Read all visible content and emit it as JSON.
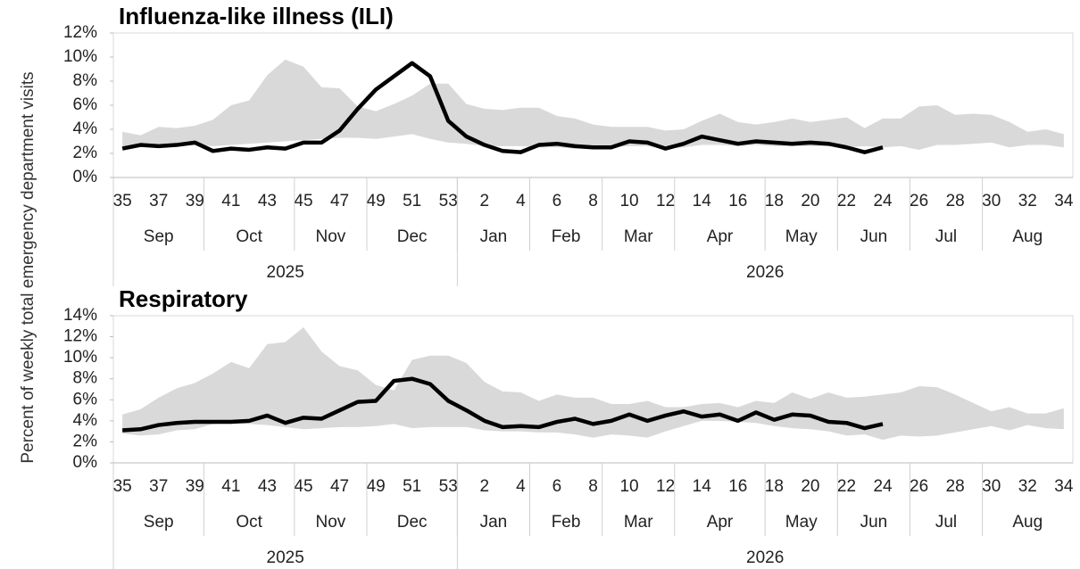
{
  "ylabel": "Percent of weekly total emergency department visits",
  "chart_data": [
    {
      "type": "line",
      "title": "Influenza-like illness (ILI)",
      "categories": [
        35,
        null,
        37,
        null,
        39,
        null,
        41,
        null,
        43,
        null,
        45,
        null,
        47,
        null,
        49,
        null,
        51,
        null,
        53,
        null,
        2,
        null,
        4,
        null,
        6,
        null,
        8,
        null,
        10,
        null,
        12,
        null,
        14,
        null,
        16,
        null,
        18,
        null,
        20,
        null,
        22,
        null,
        24,
        null,
        26,
        null,
        28,
        null,
        30,
        null,
        32,
        null,
        34
      ],
      "months": [
        {
          "label": "Sep",
          "weeks": 5
        },
        {
          "label": "Oct",
          "weeks": 5
        },
        {
          "label": "Nov",
          "weeks": 4
        },
        {
          "label": "Dec",
          "weeks": 5
        },
        {
          "label": "Jan",
          "weeks": 4
        },
        {
          "label": "Feb",
          "weeks": 4
        },
        {
          "label": "Mar",
          "weeks": 4
        },
        {
          "label": "Apr",
          "weeks": 5
        },
        {
          "label": "May",
          "weeks": 4
        },
        {
          "label": "Jun",
          "weeks": 4
        },
        {
          "label": "Jul",
          "weeks": 4
        },
        {
          "label": "Aug",
          "weeks": 5
        }
      ],
      "years": [
        {
          "label": "2025",
          "weeks": 19
        },
        {
          "label": "2026",
          "weeks": 34
        }
      ],
      "series": [
        {
          "color": "#000000",
          "values": [
            2.4,
            2.7,
            2.6,
            2.7,
            2.9,
            2.2,
            2.4,
            2.3,
            2.5,
            2.4,
            2.9,
            2.9,
            3.9,
            5.7,
            7.3,
            8.4,
            9.5,
            8.4,
            4.7,
            3.4,
            2.7,
            2.2,
            2.1,
            2.7,
            2.8,
            2.6,
            2.5,
            2.5,
            3.0,
            2.9,
            2.4,
            2.8,
            3.4,
            3.1,
            2.8,
            3.0,
            2.9,
            2.8,
            2.9,
            2.8,
            2.5,
            2.1,
            2.5,
            null,
            null,
            null,
            null,
            null,
            null,
            null,
            null,
            null,
            null
          ]
        }
      ],
      "range": {
        "color": "#d9d9d9",
        "high": [
          3.8,
          3.5,
          4.2,
          4.1,
          4.3,
          4.8,
          6.0,
          6.4,
          8.5,
          9.8,
          9.2,
          7.5,
          7.4,
          5.9,
          5.5,
          6.1,
          6.8,
          7.8,
          7.8,
          6.1,
          5.7,
          5.6,
          5.8,
          5.8,
          5.1,
          4.9,
          4.4,
          4.2,
          4.2,
          4.2,
          3.9,
          4.0,
          4.7,
          5.3,
          4.6,
          4.4,
          4.6,
          4.9,
          4.6,
          4.8,
          5.0,
          4.1,
          4.9,
          4.9,
          5.9,
          6.0,
          5.2,
          5.3,
          5.2,
          4.6,
          3.8,
          4.0,
          3.6
        ],
        "low": [
          2.4,
          2.6,
          2.5,
          2.6,
          2.7,
          2.6,
          2.7,
          2.8,
          2.9,
          3.0,
          3.1,
          3.2,
          3.3,
          3.3,
          3.2,
          3.4,
          3.6,
          3.2,
          2.9,
          2.8,
          2.6,
          2.6,
          2.6,
          2.5,
          2.5,
          2.4,
          2.5,
          2.5,
          2.6,
          2.6,
          2.4,
          2.5,
          2.7,
          2.7,
          2.6,
          2.7,
          2.6,
          2.6,
          2.6,
          2.6,
          2.5,
          2.6,
          2.5,
          2.6,
          2.3,
          2.7,
          2.7,
          2.8,
          2.9,
          2.5,
          2.7,
          2.7,
          2.5
        ]
      },
      "ylim": [
        0,
        12
      ],
      "yticks": [
        {
          "value": 0,
          "label": "0%"
        },
        {
          "value": 2,
          "label": "2%"
        },
        {
          "value": 4,
          "label": "4%"
        },
        {
          "value": 6,
          "label": "6%"
        },
        {
          "value": 8,
          "label": "8%"
        },
        {
          "value": 10,
          "label": "10%"
        },
        {
          "value": 12,
          "label": "12%"
        }
      ]
    },
    {
      "type": "line",
      "title": "Respiratory",
      "categories": [
        35,
        null,
        37,
        null,
        39,
        null,
        41,
        null,
        43,
        null,
        45,
        null,
        47,
        null,
        49,
        null,
        51,
        null,
        53,
        null,
        2,
        null,
        4,
        null,
        6,
        null,
        8,
        null,
        10,
        null,
        12,
        null,
        14,
        null,
        16,
        null,
        18,
        null,
        20,
        null,
        22,
        null,
        24,
        null,
        26,
        null,
        28,
        null,
        30,
        null,
        32,
        null,
        34
      ],
      "months": [
        {
          "label": "Sep",
          "weeks": 5
        },
        {
          "label": "Oct",
          "weeks": 5
        },
        {
          "label": "Nov",
          "weeks": 4
        },
        {
          "label": "Dec",
          "weeks": 5
        },
        {
          "label": "Jan",
          "weeks": 4
        },
        {
          "label": "Feb",
          "weeks": 4
        },
        {
          "label": "Mar",
          "weeks": 4
        },
        {
          "label": "Apr",
          "weeks": 5
        },
        {
          "label": "May",
          "weeks": 4
        },
        {
          "label": "Jun",
          "weeks": 4
        },
        {
          "label": "Jul",
          "weeks": 4
        },
        {
          "label": "Aug",
          "weeks": 5
        }
      ],
      "years": [
        {
          "label": "2025",
          "weeks": 19
        },
        {
          "label": "2026",
          "weeks": 34
        }
      ],
      "series": [
        {
          "color": "#000000",
          "values": [
            3.1,
            3.2,
            3.6,
            3.8,
            3.9,
            3.9,
            3.9,
            4.0,
            4.5,
            3.8,
            4.3,
            4.2,
            5.0,
            5.8,
            5.9,
            7.8,
            8.0,
            7.5,
            5.9,
            5.0,
            4.0,
            3.4,
            3.5,
            3.4,
            3.9,
            4.2,
            3.7,
            4.0,
            4.6,
            4.0,
            4.5,
            4.9,
            4.4,
            4.6,
            4.0,
            4.8,
            4.1,
            4.6,
            4.5,
            3.9,
            3.8,
            3.3,
            3.7,
            null,
            null,
            null,
            null,
            null,
            null,
            null,
            null,
            null,
            null
          ]
        }
      ],
      "range": {
        "color": "#d9d9d9",
        "high": [
          4.6,
          5.1,
          6.2,
          7.1,
          7.6,
          8.5,
          9.6,
          9.0,
          11.3,
          11.5,
          12.9,
          10.6,
          9.2,
          8.8,
          7.4,
          6.9,
          9.8,
          10.2,
          10.2,
          9.5,
          7.7,
          6.8,
          6.7,
          5.9,
          6.5,
          6.2,
          6.2,
          5.6,
          5.6,
          5.9,
          5.3,
          5.3,
          5.6,
          5.7,
          5.3,
          5.9,
          5.7,
          6.7,
          6.1,
          6.7,
          6.2,
          6.3,
          6.5,
          6.7,
          7.3,
          7.2,
          6.5,
          5.7,
          4.9,
          5.3,
          4.7,
          4.7,
          5.2
        ],
        "low": [
          2.8,
          2.6,
          2.7,
          3.1,
          3.2,
          3.7,
          3.8,
          3.7,
          3.6,
          3.4,
          3.2,
          3.3,
          3.4,
          3.4,
          3.5,
          3.7,
          3.3,
          3.4,
          3.4,
          3.4,
          3.1,
          3.0,
          3.0,
          2.9,
          2.9,
          2.7,
          2.4,
          2.7,
          2.6,
          2.4,
          3.0,
          3.5,
          4.0,
          4.0,
          3.9,
          3.8,
          3.5,
          3.3,
          3.2,
          3.0,
          2.6,
          2.7,
          2.2,
          2.6,
          2.5,
          2.6,
          2.9,
          3.2,
          3.5,
          3.1,
          3.6,
          3.3,
          3.2
        ]
      },
      "ylim": [
        0,
        14
      ],
      "yticks": [
        {
          "value": 0,
          "label": "0%"
        },
        {
          "value": 2,
          "label": "2%"
        },
        {
          "value": 4,
          "label": "4%"
        },
        {
          "value": 6,
          "label": "6%"
        },
        {
          "value": 8,
          "label": "8%"
        },
        {
          "value": 10,
          "label": "10%"
        },
        {
          "value": 12,
          "label": "12%"
        },
        {
          "value": 14,
          "label": "14%"
        }
      ]
    }
  ]
}
